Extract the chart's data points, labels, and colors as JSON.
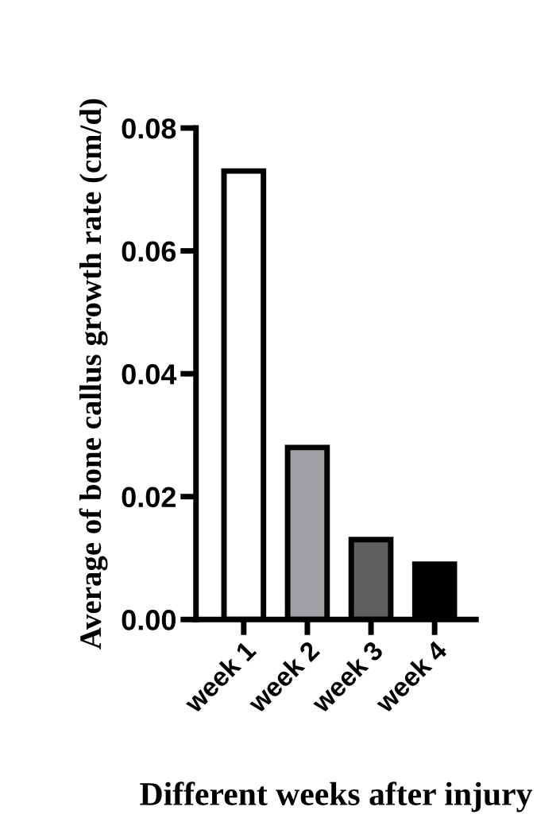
{
  "chart_data": {
    "type": "bar",
    "xlabel": "Different weeks after injury",
    "ylabel": "Average of bone callus growth rate (cm/d)",
    "categories": [
      "week 1",
      "week 2",
      "week 3",
      "week 4"
    ],
    "values": [
      0.073,
      0.028,
      0.013,
      0.009
    ],
    "colors": [
      "#ffffff",
      "#a0a0a4",
      "#606060",
      "#000000"
    ],
    "ylim": [
      0,
      0.08
    ],
    "yticks": [
      {
        "value": 0,
        "label": "0.00"
      },
      {
        "value": 0.02,
        "label": "0.02"
      },
      {
        "value": 0.04,
        "label": "0.04"
      },
      {
        "value": 0.06,
        "label": "0.06"
      },
      {
        "value": 0.08,
        "label": "0.08"
      }
    ],
    "grid": false,
    "legend": false
  }
}
